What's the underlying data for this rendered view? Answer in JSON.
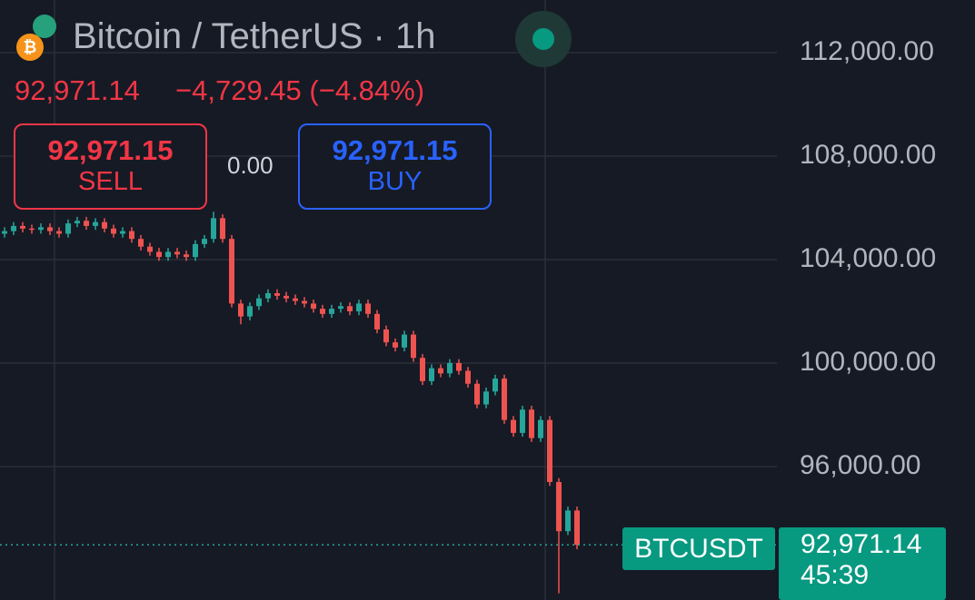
{
  "header": {
    "title": "Bitcoin / TetherUS · 1h",
    "price": "92,971.14",
    "change": "−4,729.45 (−4.84%)"
  },
  "trade_panel": {
    "sell_price": "92,971.15",
    "sell_label": "SELL",
    "spread": "0.00",
    "buy_price": "92,971.15",
    "buy_label": "BUY"
  },
  "price_tag": {
    "symbol": "BTCUSDT",
    "last_price": "92,971.14",
    "countdown": "45:39"
  },
  "chart_data": {
    "type": "candlestick",
    "up_color": "#26a69a",
    "down_color": "#ef5350",
    "ylim": [
      90840,
      114035
    ],
    "yticks": [
      {
        "value": 112000,
        "label": "112,000.00"
      },
      {
        "value": 108000,
        "label": "108,000.00"
      },
      {
        "value": 104000,
        "label": "104,000.00"
      },
      {
        "value": 100000,
        "label": "100,000.00"
      },
      {
        "value": 96000,
        "label": "96,000.00"
      }
    ],
    "grid": true,
    "open": [
      105000,
      105100,
      105300,
      105200,
      105150,
      105250,
      105100,
      105000,
      105400,
      105500,
      105300,
      105450,
      105200,
      105000,
      105100,
      104800,
      104500,
      104300,
      104100,
      104300,
      104200,
      104100,
      104600,
      104800,
      105600,
      104800,
      102300,
      101800,
      102200,
      102500,
      102700,
      102600,
      102500,
      102400,
      102300,
      102100,
      101900,
      102100,
      102200,
      102000,
      102300,
      101900,
      101300,
      100800,
      100600,
      101100,
      100200,
      99300,
      99800,
      99600,
      100000,
      99700,
      99200,
      98400,
      98900,
      99400,
      97800,
      97300,
      98200,
      97100,
      97800,
      95400,
      93500,
      94300
    ],
    "high": [
      105250,
      105450,
      105450,
      105350,
      105400,
      105400,
      105250,
      105550,
      105650,
      105650,
      105600,
      105600,
      105350,
      105250,
      105250,
      104950,
      104650,
      104450,
      104450,
      104450,
      104350,
      104750,
      104950,
      105850,
      105750,
      104950,
      102450,
      102350,
      102650,
      102850,
      102850,
      102750,
      102650,
      102550,
      102450,
      102250,
      102250,
      102350,
      102350,
      102450,
      102450,
      102050,
      101450,
      100950,
      101250,
      101250,
      100350,
      99950,
      99950,
      100150,
      100150,
      99850,
      99350,
      99050,
      99550,
      99550,
      97950,
      98350,
      98350,
      97950,
      97950,
      95550,
      94450,
      94450
    ],
    "low": [
      104850,
      104950,
      105050,
      105000,
      105000,
      104950,
      104850,
      104850,
      105250,
      105150,
      105150,
      105050,
      104850,
      104850,
      104650,
      104350,
      104150,
      103950,
      103950,
      104050,
      103950,
      103950,
      104450,
      104650,
      104650,
      102150,
      101500,
      101650,
      102050,
      102350,
      102450,
      102350,
      102250,
      102150,
      101950,
      101750,
      101750,
      101950,
      101850,
      101850,
      101750,
      101150,
      100650,
      100450,
      100450,
      100050,
      99150,
      99150,
      99450,
      99450,
      99550,
      99050,
      98250,
      98250,
      98750,
      97650,
      97150,
      97150,
      96950,
      96950,
      95250,
      91100,
      93350,
      92800
    ],
    "close": [
      105100,
      105300,
      105200,
      105150,
      105250,
      105100,
      105000,
      105400,
      105500,
      105300,
      105450,
      105200,
      105000,
      105100,
      104800,
      104500,
      104300,
      104100,
      104300,
      104200,
      104100,
      104600,
      104800,
      105600,
      104800,
      102300,
      101800,
      102200,
      102500,
      102700,
      102600,
      102500,
      102400,
      102300,
      102100,
      101900,
      102100,
      102200,
      102000,
      102300,
      101900,
      101300,
      100800,
      100600,
      101100,
      100200,
      99300,
      99800,
      99600,
      100000,
      99700,
      99200,
      98400,
      98900,
      99400,
      97800,
      97300,
      98200,
      97100,
      97800,
      95400,
      93500,
      94300,
      92971.14
    ]
  }
}
